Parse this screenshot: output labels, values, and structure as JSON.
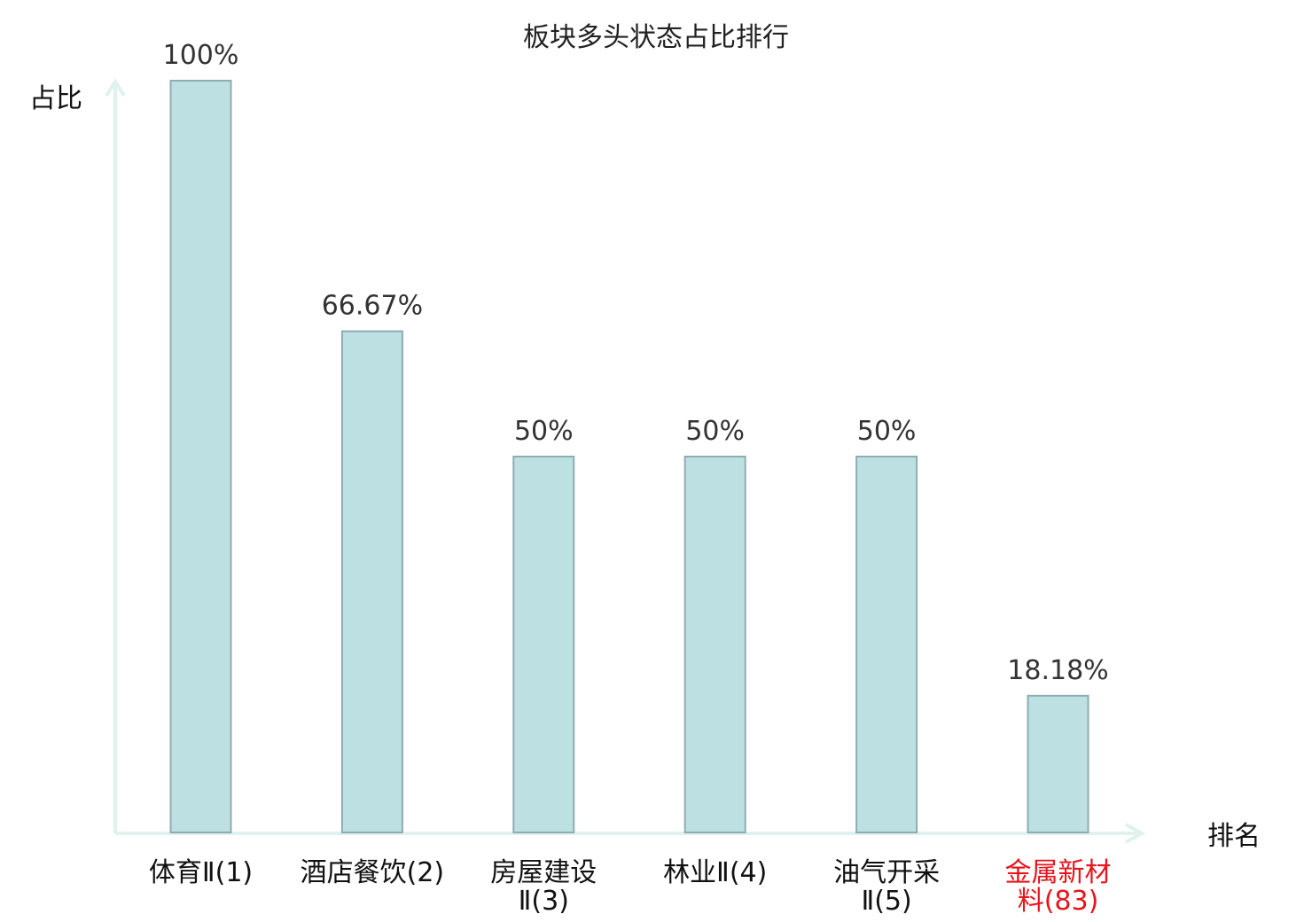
{
  "chart_data": {
    "type": "bar",
    "title": "板块多头状态占比排行",
    "ylabel": "占比",
    "xlabel": "排名",
    "ylim": [
      0,
      100
    ],
    "grid": false,
    "categories": [
      [
        "体育Ⅱ(1)"
      ],
      [
        "酒店餐饮(2)"
      ],
      [
        "房屋建设",
        "Ⅱ(3)"
      ],
      [
        "林业Ⅱ(4)"
      ],
      [
        "油气开采",
        "Ⅱ(5)"
      ],
      [
        "金属新材",
        "料(83)"
      ]
    ],
    "values": [
      100,
      66.67,
      50,
      50,
      50,
      18.18
    ],
    "value_labels": [
      "100%",
      "66.67%",
      "50%",
      "50%",
      "50%",
      "18.18%"
    ],
    "highlight_index": 5
  },
  "colors": {
    "bar_fill": "#bde0e3",
    "bar_stroke": "#8fadb1",
    "axis": "#dff2ef",
    "highlight_text": "#e8141b"
  }
}
